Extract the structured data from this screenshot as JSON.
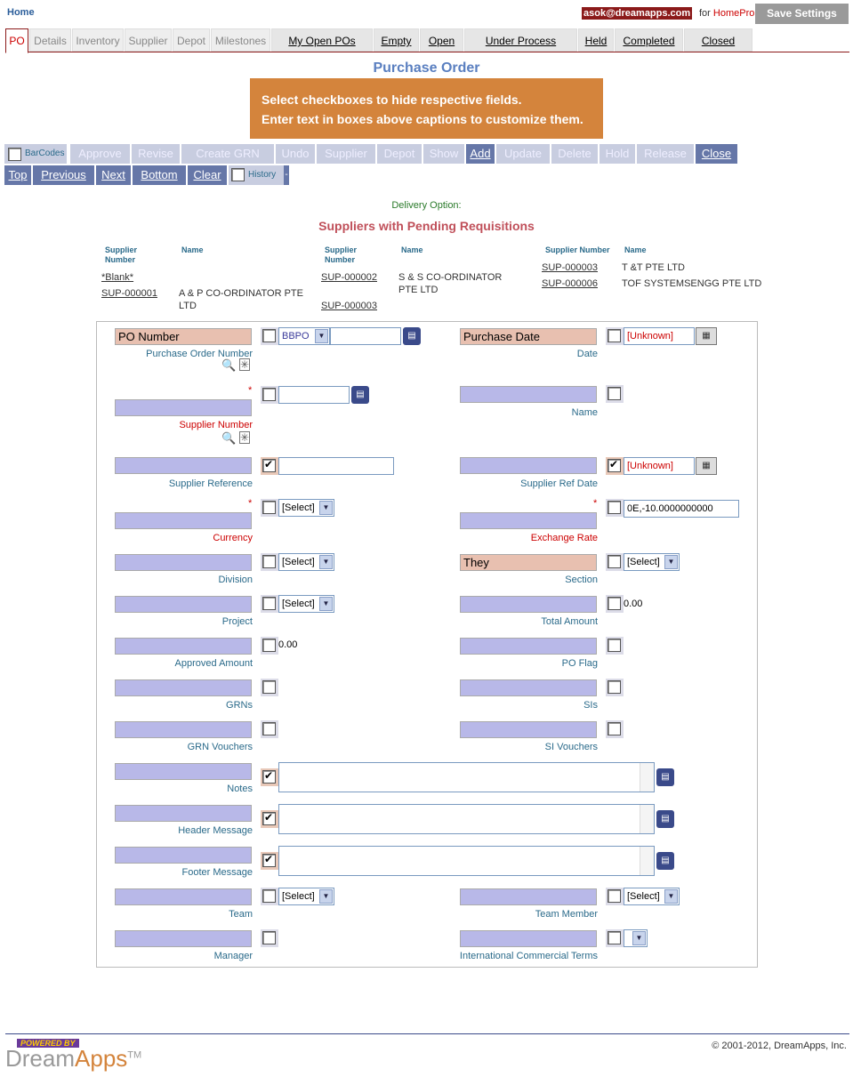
{
  "header": {
    "home": "Home",
    "email": "asok@dreamapps.com",
    "for_text": "for",
    "app_name": "HomePro",
    "save_settings": "Save Settings"
  },
  "tabs": [
    "PO",
    "Details",
    "Inventory",
    "Supplier",
    "Depot",
    "Milestones"
  ],
  "queue_tabs": [
    "My Open POs",
    "Empty",
    "Open",
    "Under Process",
    "Held",
    "Completed",
    "Closed"
  ],
  "page_title": "Purchase Order",
  "banner": {
    "line1": "Select checkboxes to hide respective fields.",
    "line2": "Enter text in boxes above captions to customize them."
  },
  "toolbar1": {
    "barcodes": "BarCodes",
    "buttons": [
      "Approve",
      "Revise",
      "Create GRN",
      "Undo",
      "Supplier",
      "Depot",
      "Show",
      "Add",
      "Update",
      "Delete",
      "Hold",
      "Release",
      "Close"
    ]
  },
  "toolbar2": {
    "buttons": [
      "Top",
      "Previous",
      "Next",
      "Bottom",
      "Clear"
    ],
    "history": "History",
    "extra": "-"
  },
  "delivery_option": "Delivery Option:",
  "suppliers": {
    "title": "Suppliers with Pending Requisitions",
    "col_supplier": "Supplier Number",
    "col_name": "Name",
    "rows": [
      {
        "num": "*Blank*",
        "name": ""
      },
      {
        "num": "SUP-000001",
        "name": "A & P CO-ORDINATOR PTE LTD"
      },
      {
        "num": "SUP-000002",
        "name": "S & S CO-ORDINATOR PTE LTD"
      },
      {
        "num": "SUP-000003",
        "name": ""
      },
      {
        "num": "SUP-000003",
        "name": "T &T PTE LTD"
      },
      {
        "num": "SUP-000006",
        "name": "TOF SYSTEMSENGG PTE LTD"
      }
    ]
  },
  "form": {
    "po_number_caption": "PO Number",
    "po_number_label": "Purchase Order Number",
    "po_prefix": "BBPO",
    "purchase_date_caption": "Purchase Date",
    "date_label": "Date",
    "date_value": "[Unknown]",
    "supplier_number_label": "Supplier Number",
    "name_label": "Name",
    "supplier_reference_label": "Supplier Reference",
    "supplier_ref_date_label": "Supplier Ref Date",
    "supplier_ref_date_value": "[Unknown]",
    "currency_label": "Currency",
    "exchange_rate_label": "Exchange Rate",
    "exchange_rate_value": "0E,-10.0000000000",
    "division_label": "Division",
    "section_caption": "They",
    "section_label": "Section",
    "project_label": "Project",
    "total_amount_label": "Total Amount",
    "total_amount_value": "0.00",
    "approved_amount_label": "Approved Amount",
    "approved_amount_value": "0.00",
    "po_flag_label": "PO Flag",
    "grns_label": "GRNs",
    "sis_label": "SIs",
    "grn_vouchers_label": "GRN Vouchers",
    "si_vouchers_label": "SI Vouchers",
    "notes_label": "Notes",
    "header_message_label": "Header Message",
    "footer_message_label": "Footer Message",
    "team_label": "Team",
    "team_member_label": "Team Member",
    "manager_label": "Manager",
    "incoterms_label": "International Commercial Terms",
    "select_placeholder": "[Select]",
    "required_mark": "*"
  },
  "footer": {
    "powered": "POWERED BY",
    "brand1": "Dream",
    "brand2": "Apps",
    "tm": "TM",
    "copyright": "© 2001-2012, DreamApps, Inc."
  }
}
